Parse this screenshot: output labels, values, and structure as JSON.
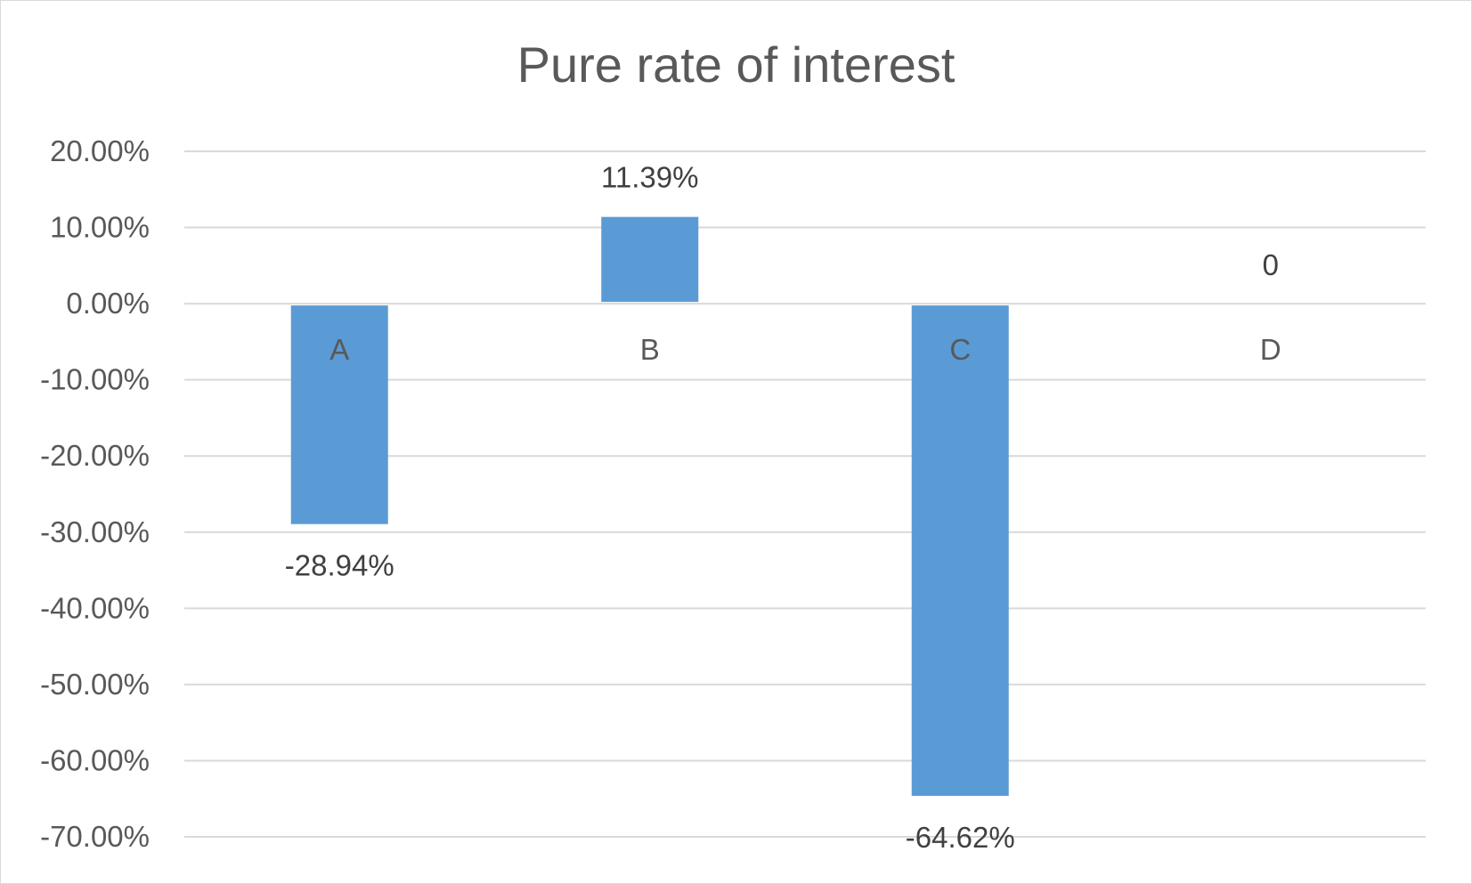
{
  "chart_data": {
    "type": "bar",
    "title": "Pure rate of interest",
    "categories": [
      "A",
      "B",
      "C",
      "D"
    ],
    "values": [
      -28.94,
      11.39,
      -64.62,
      0
    ],
    "data_labels": [
      "-28.94%",
      "11.39%",
      "-64.62%",
      "0"
    ],
    "ylim": [
      -70,
      20
    ],
    "yticks": [
      20,
      10,
      0,
      -10,
      -20,
      -30,
      -40,
      -50,
      -60,
      -70
    ],
    "ytick_labels": [
      "20.00%",
      "10.00%",
      "0.00%",
      "-10.00%",
      "-20.00%",
      "-30.00%",
      "-40.00%",
      "-50.00%",
      "-60.00%",
      "-70.00%"
    ],
    "grid": true,
    "legend": "none",
    "colors": {
      "bar": "#5b9bd5",
      "grid": "#d9d9d9",
      "text": "#595959"
    }
  }
}
